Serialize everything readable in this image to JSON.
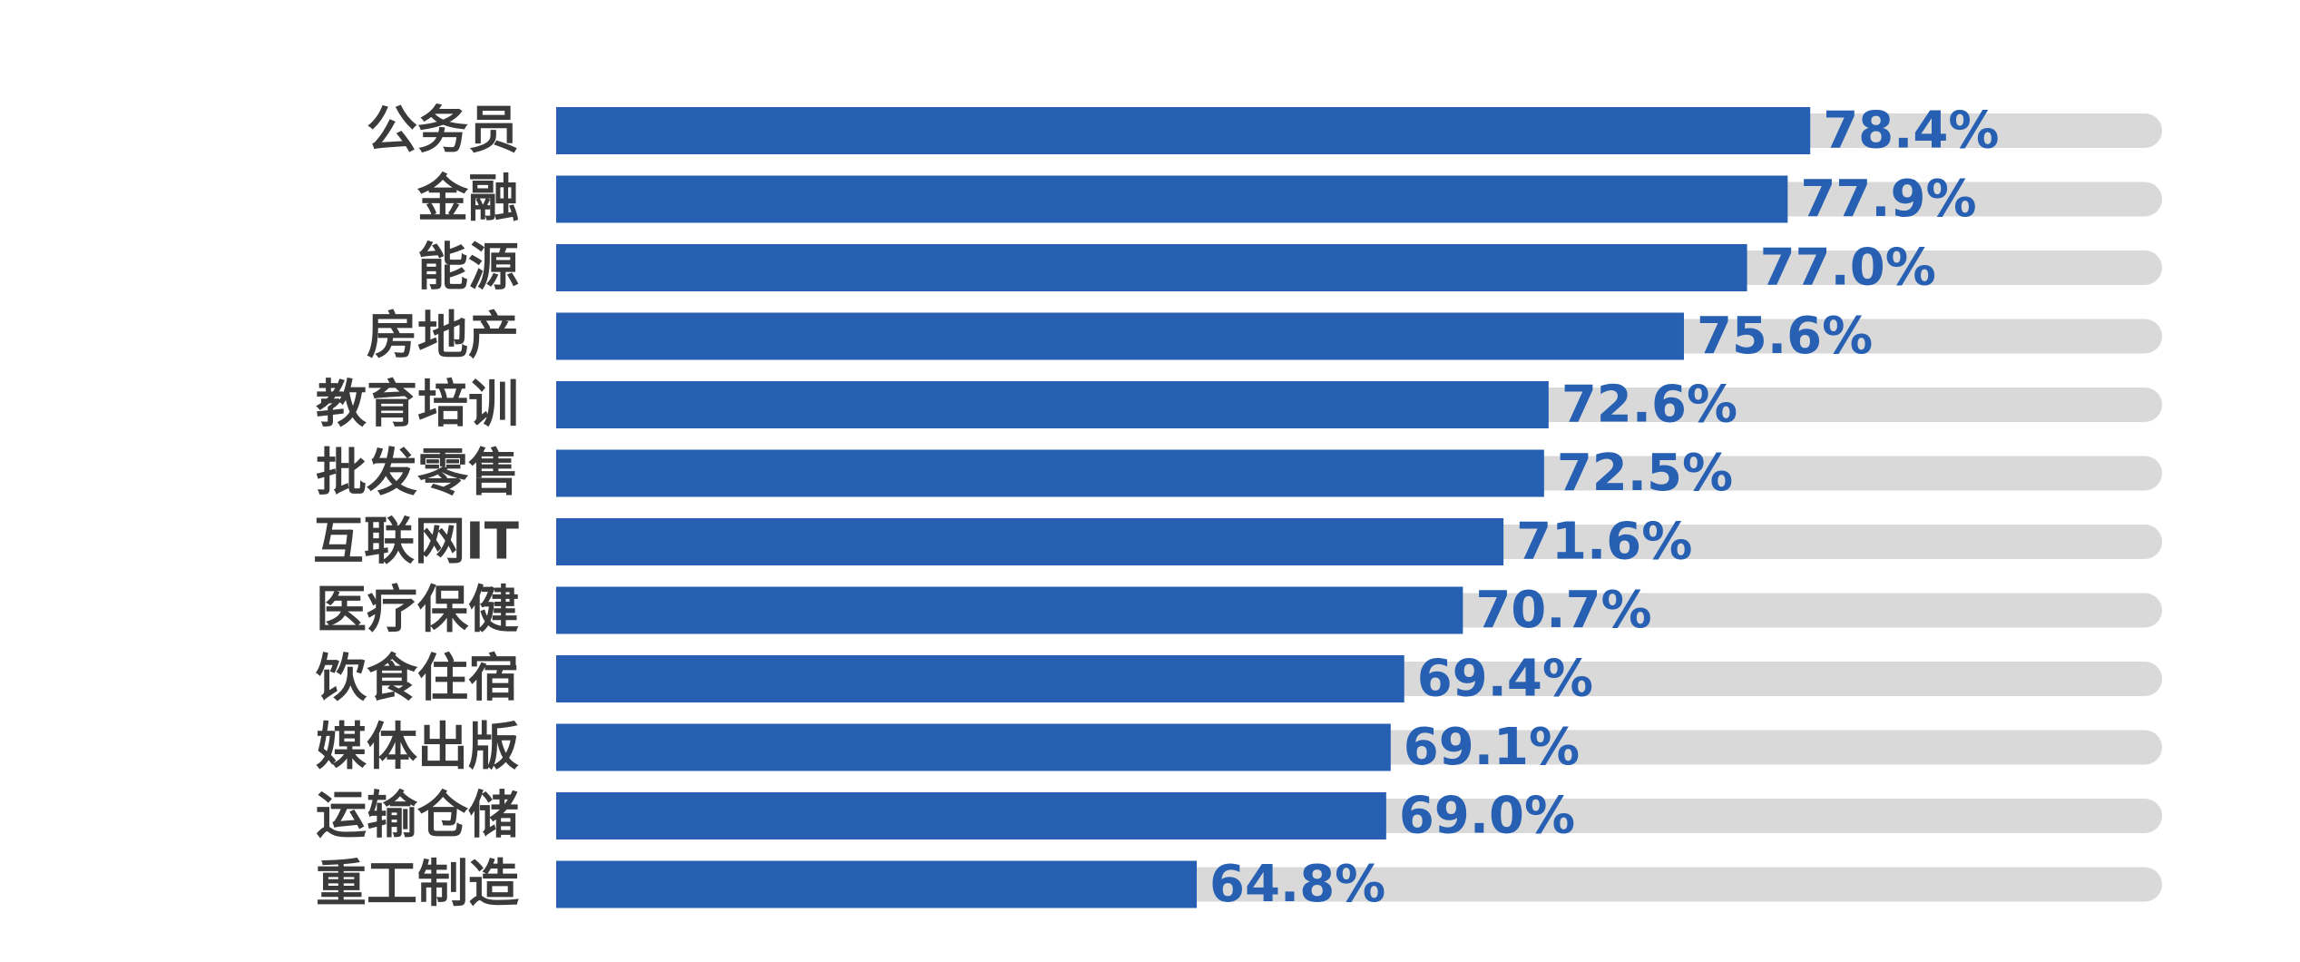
{
  "chart_data": {
    "type": "bar",
    "orientation": "horizontal",
    "categories": [
      "公务员",
      "金融",
      "能源",
      "房地产",
      "教育培训",
      "批发零售",
      "互联网IT",
      "医疗保健",
      "饮食住宿",
      "媒体出版",
      "运输仓储",
      "重工制造"
    ],
    "values": [
      78.4,
      77.9,
      77.0,
      75.6,
      72.6,
      72.5,
      71.6,
      70.7,
      69.4,
      69.1,
      69.0,
      64.8
    ],
    "value_labels": [
      "78.4%",
      "77.9%",
      "77.0%",
      "75.6%",
      "72.6%",
      "72.5%",
      "71.6%",
      "70.7%",
      "69.4%",
      "69.1%",
      "69.0%",
      "64.8%"
    ],
    "unit": "%",
    "xlim": [
      50.6,
      86.2
    ],
    "title": "",
    "xlabel": "",
    "ylabel": "",
    "grid": false,
    "legend": "none",
    "colors": {
      "bar": "#2760b2",
      "track": "#d9d9d9",
      "value_text": "#2760b2",
      "category_text": "#3a3a3a"
    }
  }
}
